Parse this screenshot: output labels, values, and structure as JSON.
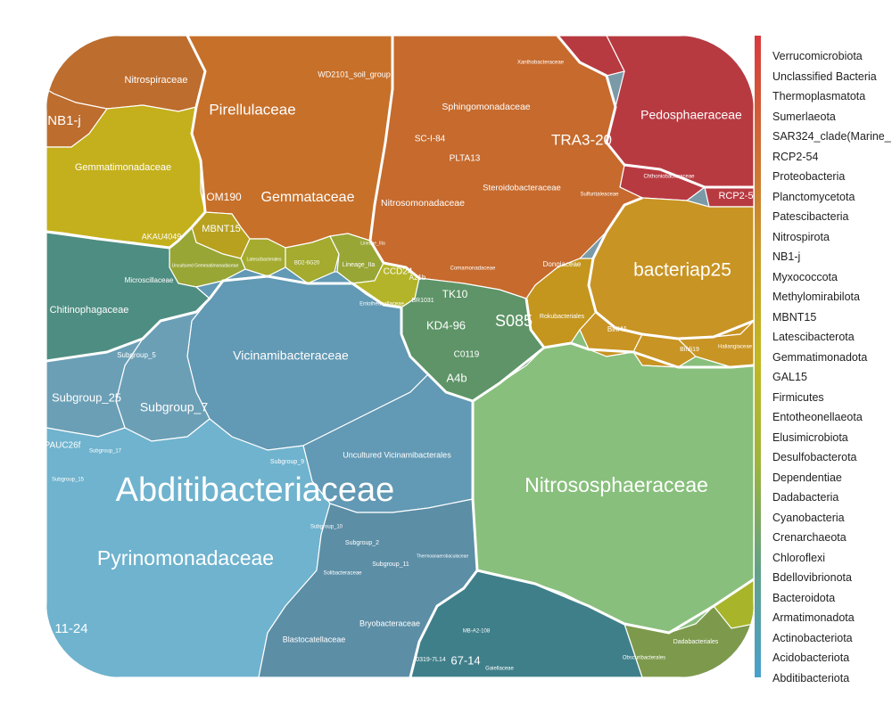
{
  "legend": {
    "items": [
      "Verrucomicrobiota",
      "Unclassified Bacteria",
      "Thermoplasmatota",
      "Sumerlaeota",
      "SAR324_clade(Marine_",
      "RCP2-54",
      "Proteobacteria",
      "Planctomycetota",
      "Patescibacteria",
      "Nitrospirota",
      "NB1-j",
      "Myxococcota",
      "Methylomirabilota",
      "MBNT15",
      "Latescibacterota",
      "Gemmatimonadota",
      "GAL15",
      "Firmicutes",
      "Entotheonellaeota",
      "Elusimicrobiota",
      "Desulfobacterota",
      "Dependentiae",
      "Dadabacteria",
      "Cyanobacteria",
      "Crenarchaeota",
      "Chloroflexi",
      "Bdellovibrionota",
      "Bacteroidota",
      "Armatimonadota",
      "Actinobacteriota",
      "Acidobacteriota",
      "Abditibacteriota"
    ],
    "gradient_colors": [
      "#d8393e",
      "#cf6a34",
      "#c89a2a",
      "#c2b722",
      "#9eb43c",
      "#62a088",
      "#47a0cd"
    ]
  },
  "cells": [
    {
      "id": "verruco",
      "color": "#b83a41"
    },
    {
      "id": "nitrospir",
      "color": "#bd6d2e"
    },
    {
      "id": "planct",
      "color": "#c7702a"
    },
    {
      "id": "proteo",
      "color": "#c66a2d"
    },
    {
      "id": "gemmatim",
      "color": "#c4b01c"
    },
    {
      "id": "mbnt",
      "color": "#b7a11f"
    },
    {
      "id": "latesci",
      "color": "#a4ab2f"
    },
    {
      "id": "entotheo",
      "color": "#b4b42a"
    },
    {
      "id": "greenyellow",
      "color": "#98a636"
    },
    {
      "id": "patesci",
      "color": "#c89423"
    },
    {
      "id": "rokubact",
      "color": "#c4961e"
    },
    {
      "id": "chloroflexi",
      "color": "#5e9467"
    },
    {
      "id": "nitrososph",
      "color": "#88bf7c"
    },
    {
      "id": "bacteroid",
      "color": "#4e8d82"
    },
    {
      "id": "acido",
      "color": "#6b9fb6"
    },
    {
      "id": "abditi",
      "color": "#6fb3ce"
    },
    {
      "id": "vicinami",
      "color": "#6299b4"
    },
    {
      "id": "bryo",
      "color": "#5c8ea6"
    },
    {
      "id": "actino",
      "color": "#3f7f8a"
    },
    {
      "id": "firmic",
      "color": "#a8b42a"
    },
    {
      "id": "dadabact",
      "color": "#7d9a4c"
    },
    {
      "id": "rightgreen",
      "color": "#6f9f55"
    }
  ],
  "labels": {
    "pedosph": "Pedosphaeraceae",
    "tra320": "TRA3-20",
    "bacteriap25": "bacteriap25",
    "nitrososph": "Nitrososphaeraceae",
    "abditi": "Abditibacteriaceae",
    "pyrino": "Pyrinomonadaceae",
    "vicinami": "Vicinamibacteraceae",
    "subgroup7": "Subgroup_7",
    "subgroup25": "Subgroup_25",
    "pirellul": "Pirellulaceae",
    "gemmatac": "Gemmataceae",
    "nitrosomon": "Nitrosomonadaceae",
    "sphingomon": "Sphingomonadaceae",
    "steroido": "Steroidobacteraceae",
    "gemmatimon": "Gemmatimonadaceae",
    "chitino": "Chitinophagaceae",
    "s085": "S085",
    "kd496": "KD4-96",
    "tk10": "TK10",
    "a4b": "A4b",
    "c0119": "C0119",
    "nitrospira": "Nitrospiraceae",
    "nb1j": "NB1-j",
    "om190": "OM190",
    "mbnt15": "MBNT15",
    "akau4049": "AKAU4049",
    "wd2101": "WD2101_soil_group",
    "scl84": "SC-I-84",
    "plta13": "PLTA13",
    "rcp25": "RCP2-5",
    "blastocat": "Blastocatellaceae",
    "bryobact": "Bryobacteraceae",
    "uncvici": "Uncultured Vicinamibacterales",
    "sg5": "Subgroup_5",
    "s6714": "67-14",
    "s1124": "11-24",
    "pauc26f": "PAUC26f",
    "ccd24": "CCD24",
    "a21b": "A21b",
    "br1031": "BR1031",
    "dongiac": "Dongiaceae",
    "rokubact": "Rokubacteriales",
    "blrii41": "Blrii41",
    "microscill": "Microscillaceae",
    "subgroup2": "Subgroup_2",
    "subgroup11": "Subgroup_11",
    "subgroup9": "Subgroup_9",
    "subgroup17": "Subgroup_17",
    "subgroup15": "Subgroup_15",
    "subgroup10": "Subgroup_10",
    "lineageiia": "Lineage_IIa",
    "lineageiii": "Lineage_IIIa",
    "dadabactls": "Dadabacteriales",
    "obscuribact": "Obscuribacterales",
    "solibact": "Solibacteraceae",
    "thermoanaer": "Thermoanaerobaculaceae",
    "mba2108": "MB-A2-108",
    "s0319": "0319-7L14",
    "gaiellac": "Gaiellaceae",
    "comamon": "Comamonadaceae",
    "hal": "Haliangiaceae",
    "blfdi19": "BIfdi19",
    "chthonio": "Chthoniobacteraceae",
    "xantho": "Xanthobacteraceae",
    "sulfurif": "Sulfuritaleaceae",
    "entotheo": "Entotheonellaceae",
    "unclassgem": "Uncultured Gemmatimonadaceae",
    "latescib": "Latescibacterales",
    "bd26": "BD2-6G20"
  }
}
